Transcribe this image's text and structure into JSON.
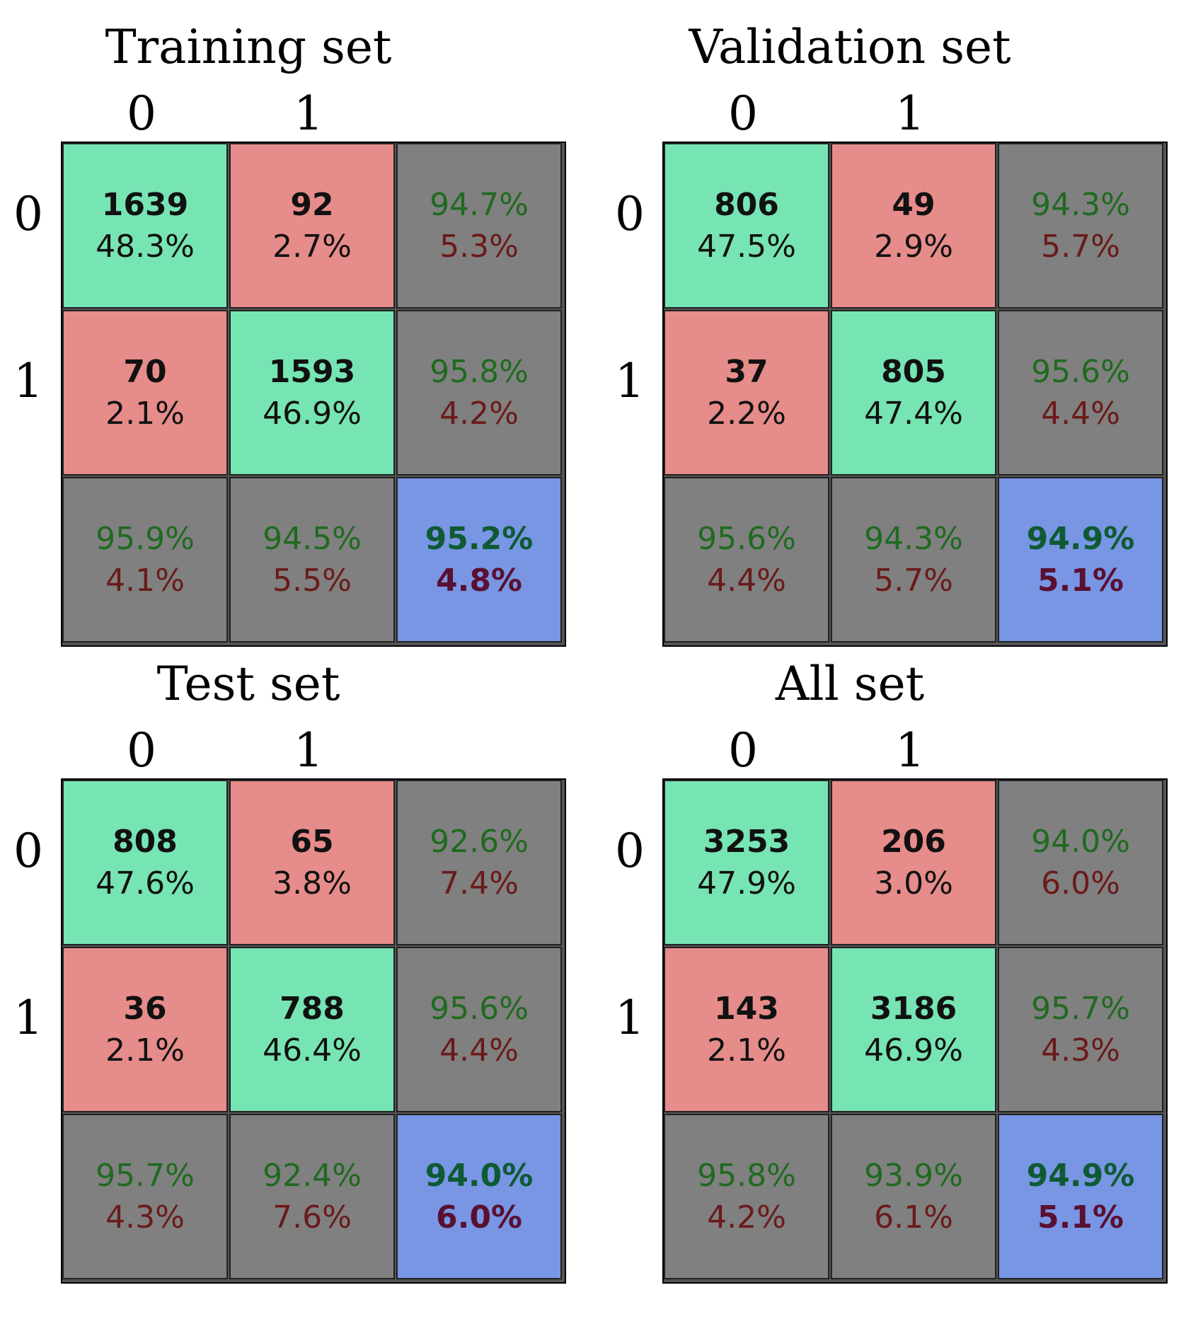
{
  "colors": {
    "correct": "#77e4b4",
    "incorrect": "#e68c8a",
    "summary": "#808080",
    "overall": "#7896e4"
  },
  "chart_data": [
    {
      "type": "heatmap",
      "title": "Training set",
      "col_labels": [
        "0",
        "1"
      ],
      "row_labels": [
        "0",
        "1"
      ],
      "matrix": [
        [
          {
            "count": "1639",
            "pct": "48.3%"
          },
          {
            "count": "92",
            "pct": "2.7%"
          }
        ],
        [
          {
            "count": "70",
            "pct": "2.1%"
          },
          {
            "count": "1593",
            "pct": "46.9%"
          }
        ]
      ],
      "row_summary": [
        {
          "good": "94.7%",
          "bad": "5.3%"
        },
        {
          "good": "95.8%",
          "bad": "4.2%"
        }
      ],
      "col_summary": [
        {
          "good": "95.9%",
          "bad": "4.1%"
        },
        {
          "good": "94.5%",
          "bad": "5.5%"
        }
      ],
      "overall": {
        "good": "95.2%",
        "bad": "4.8%"
      }
    },
    {
      "type": "heatmap",
      "title": "Validation set",
      "col_labels": [
        "0",
        "1"
      ],
      "row_labels": [
        "0",
        "1"
      ],
      "matrix": [
        [
          {
            "count": "806",
            "pct": "47.5%"
          },
          {
            "count": "49",
            "pct": "2.9%"
          }
        ],
        [
          {
            "count": "37",
            "pct": "2.2%"
          },
          {
            "count": "805",
            "pct": "47.4%"
          }
        ]
      ],
      "row_summary": [
        {
          "good": "94.3%",
          "bad": "5.7%"
        },
        {
          "good": "95.6%",
          "bad": "4.4%"
        }
      ],
      "col_summary": [
        {
          "good": "95.6%",
          "bad": "4.4%"
        },
        {
          "good": "94.3%",
          "bad": "5.7%"
        }
      ],
      "overall": {
        "good": "94.9%",
        "bad": "5.1%"
      }
    },
    {
      "type": "heatmap",
      "title": "Test set",
      "col_labels": [
        "0",
        "1"
      ],
      "row_labels": [
        "0",
        "1"
      ],
      "matrix": [
        [
          {
            "count": "808",
            "pct": "47.6%"
          },
          {
            "count": "65",
            "pct": "3.8%"
          }
        ],
        [
          {
            "count": "36",
            "pct": "2.1%"
          },
          {
            "count": "788",
            "pct": "46.4%"
          }
        ]
      ],
      "row_summary": [
        {
          "good": "92.6%",
          "bad": "7.4%"
        },
        {
          "good": "95.6%",
          "bad": "4.4%"
        }
      ],
      "col_summary": [
        {
          "good": "95.7%",
          "bad": "4.3%"
        },
        {
          "good": "92.4%",
          "bad": "7.6%"
        }
      ],
      "overall": {
        "good": "94.0%",
        "bad": "6.0%"
      }
    },
    {
      "type": "heatmap",
      "title": "All set",
      "col_labels": [
        "0",
        "1"
      ],
      "row_labels": [
        "0",
        "1"
      ],
      "matrix": [
        [
          {
            "count": "3253",
            "pct": "47.9%"
          },
          {
            "count": "206",
            "pct": "3.0%"
          }
        ],
        [
          {
            "count": "143",
            "pct": "2.1%"
          },
          {
            "count": "3186",
            "pct": "46.9%"
          }
        ]
      ],
      "row_summary": [
        {
          "good": "94.0%",
          "bad": "6.0%"
        },
        {
          "good": "95.7%",
          "bad": "4.3%"
        }
      ],
      "col_summary": [
        {
          "good": "95.8%",
          "bad": "4.2%"
        },
        {
          "good": "93.9%",
          "bad": "6.1%"
        }
      ],
      "overall": {
        "good": "94.9%",
        "bad": "5.1%"
      }
    }
  ]
}
